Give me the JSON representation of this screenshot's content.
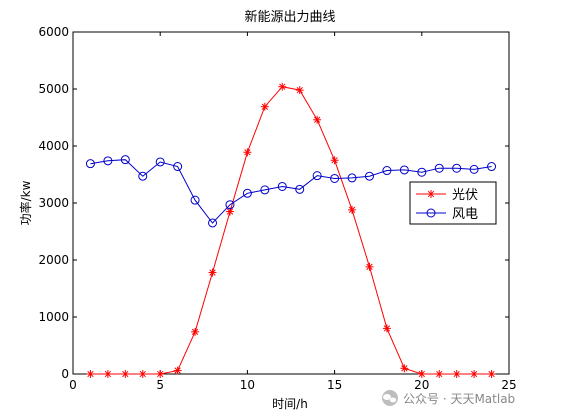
{
  "chart_data": {
    "type": "line",
    "title": "新能源出力曲线",
    "xlabel": "时间/h",
    "ylabel": "功率/kw",
    "xlim": [
      0,
      25
    ],
    "ylim": [
      0,
      6000
    ],
    "xticks": [
      0,
      5,
      10,
      15,
      20,
      25
    ],
    "yticks": [
      0,
      1000,
      2000,
      3000,
      4000,
      5000,
      6000
    ],
    "grid": false,
    "legend_position": "right",
    "x": [
      1,
      2,
      3,
      4,
      5,
      6,
      7,
      8,
      9,
      10,
      11,
      12,
      13,
      14,
      15,
      16,
      17,
      18,
      19,
      20,
      21,
      22,
      23,
      24
    ],
    "series": [
      {
        "name": "光伏",
        "color": "#ff0000",
        "marker": "star",
        "values": [
          0,
          0,
          0,
          0,
          0,
          60,
          740,
          1780,
          2850,
          3890,
          4690,
          5040,
          4980,
          4460,
          3750,
          2880,
          1880,
          800,
          100,
          0,
          0,
          0,
          0,
          0
        ]
      },
      {
        "name": "风电",
        "color": "#0000cc",
        "marker": "circle",
        "values": [
          3690,
          3740,
          3760,
          3470,
          3720,
          3640,
          3050,
          2650,
          2970,
          3170,
          3230,
          3290,
          3240,
          3480,
          3430,
          3440,
          3470,
          3570,
          3580,
          3540,
          3610,
          3610,
          3590,
          3640
        ]
      }
    ]
  },
  "watermark": {
    "text": "公众号 · 天天Matlab",
    "icon": "wechat-icon"
  }
}
